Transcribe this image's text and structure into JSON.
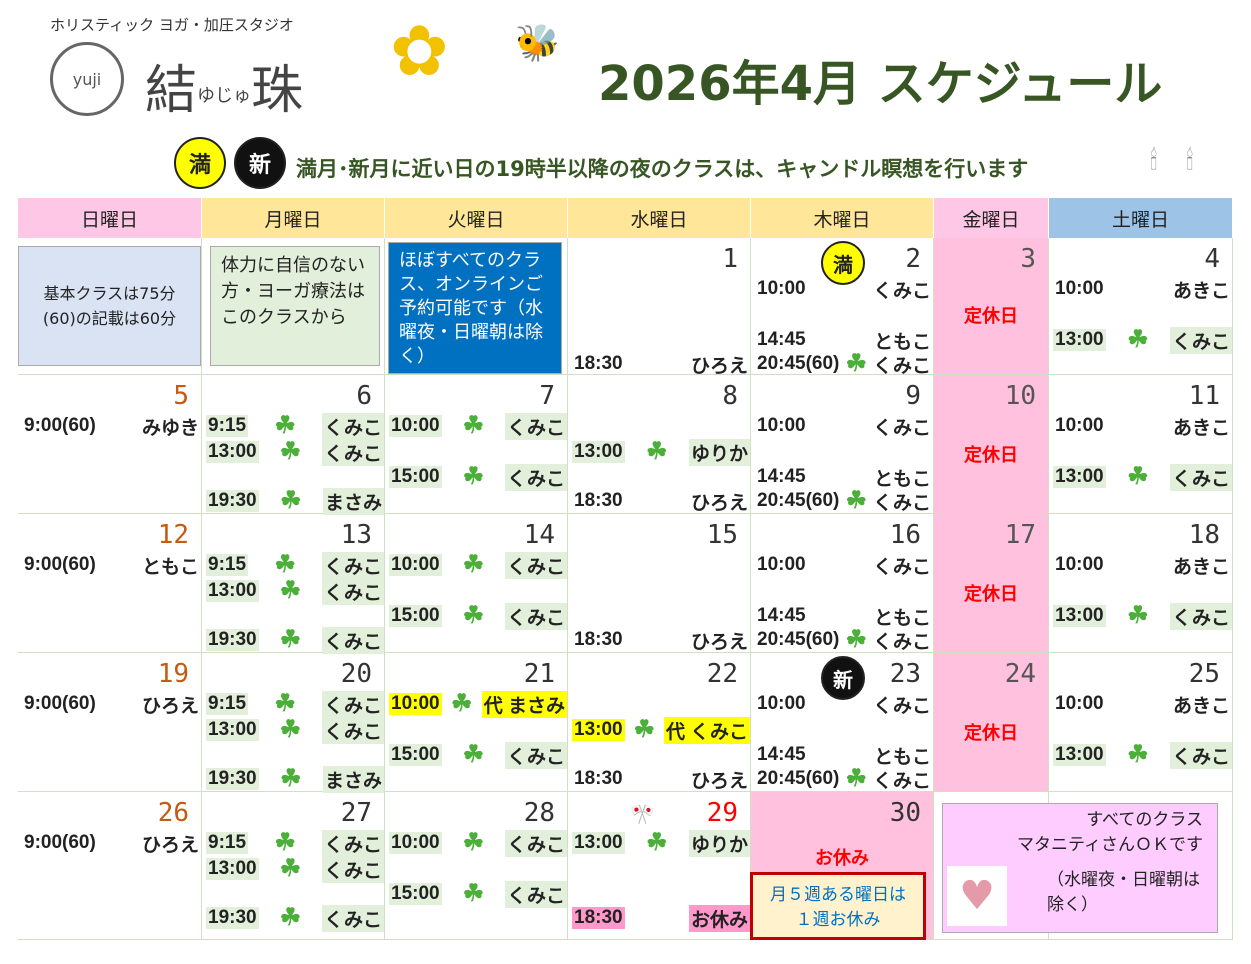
{
  "header": {
    "studio_sub": "ホリスティック ヨガ・加圧スタジオ",
    "logo_mark": "yuji",
    "studio_name": "結",
    "studio_reading": "ゆじゅ",
    "studio_name2": "珠",
    "title": "2026年4月 スケジュール"
  },
  "notice": {
    "full_moon": "満",
    "new_moon": "新",
    "text": "満月･新月に近い日の19時半以降の夜のクラスは、キャンドル瞑想を行います"
  },
  "colors": {
    "title": "#375623",
    "sun": "#ffc7e6",
    "weekday": "#ffe699",
    "fri": "#ffc7e6",
    "sat": "#9dc3e6",
    "closed": "#ffc1dd"
  },
  "weekdays": [
    "日曜日",
    "月曜日",
    "火曜日",
    "水曜日",
    "木曜日",
    "金曜日",
    "土曜日"
  ],
  "notes": {
    "basic": "基本クラスは75分 (60)の記載は60分",
    "beginner": "体力に自信のない方・ヨーガ療法はこのクラスから",
    "online": "ほぼすべてのクラス、オンラインご予約可能です（水曜夜・日曜朝は除く）",
    "fifth_week": "月５週ある曜日は１週お休み",
    "maternity1": "すべてのクラス",
    "maternity2": "マタニティさんＯＫです",
    "maternity3": "（水曜夜・日曜朝は除く）"
  },
  "weeks": [
    [
      null,
      null,
      null,
      {
        "day": "1",
        "e": [
          {
            "s": 3,
            "time": "18:30",
            "teacher": "ひろえ"
          }
        ]
      },
      {
        "day": "2",
        "moon": "満",
        "e": [
          {
            "s": 0,
            "time": "10:00",
            "teacher": "くみこ"
          },
          {
            "s": 2,
            "time": "14:45",
            "teacher": "ともこ"
          },
          {
            "s": 3,
            "time": "20:45(60)",
            "teacher": "くみこ",
            "clover": true,
            "candle": true
          }
        ]
      },
      {
        "day": "3",
        "closed": "定休日"
      },
      {
        "day": "4",
        "e": [
          {
            "s": 0,
            "time": "10:00",
            "teacher": "あきこ"
          },
          {
            "s": 2,
            "time": "13:00",
            "teacher": "くみこ",
            "clover": true,
            "bg": "g"
          }
        ]
      }
    ],
    [
      {
        "day": "5",
        "e": [
          {
            "s": 0,
            "time": "9:00(60)",
            "teacher": "みゆき"
          }
        ]
      },
      {
        "day": "6",
        "e": [
          {
            "s": 0,
            "time": "9:15",
            "teacher": "くみこ",
            "clover": true,
            "bg": "g"
          },
          {
            "s": 1,
            "time": "13:00",
            "teacher": "くみこ",
            "clover": true,
            "bg": "g"
          },
          {
            "s": 3,
            "time": "19:30",
            "teacher": "まさみ",
            "clover": true,
            "bg": "g"
          }
        ]
      },
      {
        "day": "7",
        "e": [
          {
            "s": 0,
            "time": "10:00",
            "teacher": "くみこ",
            "clover": true,
            "bg": "g"
          },
          {
            "s": 2,
            "time": "15:00",
            "teacher": "くみこ",
            "clover": true,
            "bg": "g"
          }
        ]
      },
      {
        "day": "8",
        "e": [
          {
            "s": 1,
            "time": "13:00",
            "teacher": "ゆりか",
            "clover": true,
            "bg": "g"
          },
          {
            "s": 3,
            "time": "18:30",
            "teacher": "ひろえ"
          }
        ]
      },
      {
        "day": "9",
        "e": [
          {
            "s": 0,
            "time": "10:00",
            "teacher": "くみこ"
          },
          {
            "s": 2,
            "time": "14:45",
            "teacher": "ともこ"
          },
          {
            "s": 3,
            "time": "20:45(60)",
            "teacher": "くみこ",
            "clover": true
          }
        ]
      },
      {
        "day": "10",
        "closed": "定休日"
      },
      {
        "day": "11",
        "e": [
          {
            "s": 0,
            "time": "10:00",
            "teacher": "あきこ"
          },
          {
            "s": 2,
            "time": "13:00",
            "teacher": "くみこ",
            "clover": true,
            "bg": "g"
          }
        ]
      }
    ],
    [
      {
        "day": "12",
        "e": [
          {
            "s": 0,
            "time": "9:00(60)",
            "teacher": "ともこ"
          }
        ]
      },
      {
        "day": "13",
        "e": [
          {
            "s": 0,
            "time": "9:15",
            "teacher": "くみこ",
            "clover": true,
            "bg": "g"
          },
          {
            "s": 1,
            "time": "13:00",
            "teacher": "くみこ",
            "clover": true,
            "bg": "g"
          },
          {
            "s": 3,
            "time": "19:30",
            "teacher": "くみこ",
            "clover": true,
            "bg": "g"
          }
        ]
      },
      {
        "day": "14",
        "e": [
          {
            "s": 0,
            "time": "10:00",
            "teacher": "くみこ",
            "clover": true,
            "bg": "g"
          },
          {
            "s": 2,
            "time": "15:00",
            "teacher": "くみこ",
            "clover": true,
            "bg": "g"
          }
        ]
      },
      {
        "day": "15",
        "e": [
          {
            "s": 3,
            "time": "18:30",
            "teacher": "ひろえ"
          }
        ]
      },
      {
        "day": "16",
        "e": [
          {
            "s": 0,
            "time": "10:00",
            "teacher": "くみこ"
          },
          {
            "s": 2,
            "time": "14:45",
            "teacher": "ともこ"
          },
          {
            "s": 3,
            "time": "20:45(60)",
            "teacher": "くみこ",
            "clover": true
          }
        ]
      },
      {
        "day": "17",
        "closed": "定休日"
      },
      {
        "day": "18",
        "e": [
          {
            "s": 0,
            "time": "10:00",
            "teacher": "あきこ"
          },
          {
            "s": 2,
            "time": "13:00",
            "teacher": "くみこ",
            "clover": true,
            "bg": "g"
          }
        ]
      }
    ],
    [
      {
        "day": "19",
        "e": [
          {
            "s": 0,
            "time": "9:00(60)",
            "teacher": "ひろえ"
          }
        ]
      },
      {
        "day": "20",
        "e": [
          {
            "s": 0,
            "time": "9:15",
            "teacher": "くみこ",
            "clover": true,
            "bg": "g"
          },
          {
            "s": 1,
            "time": "13:00",
            "teacher": "くみこ",
            "clover": true,
            "bg": "g"
          },
          {
            "s": 3,
            "time": "19:30",
            "teacher": "まさみ",
            "clover": true,
            "bg": "g"
          }
        ]
      },
      {
        "day": "21",
        "e": [
          {
            "s": 0,
            "time": "10:00",
            "teacher": "代 まさみ",
            "clover": true,
            "bg": "y"
          },
          {
            "s": 2,
            "time": "15:00",
            "teacher": "くみこ",
            "clover": true,
            "bg": "g"
          }
        ]
      },
      {
        "day": "22",
        "e": [
          {
            "s": 1,
            "time": "13:00",
            "teacher": "代 くみこ",
            "clover": true,
            "bg": "y"
          },
          {
            "s": 3,
            "time": "18:30",
            "teacher": "ひろえ"
          }
        ]
      },
      {
        "day": "23",
        "moon": "新",
        "e": [
          {
            "s": 0,
            "time": "10:00",
            "teacher": "くみこ"
          },
          {
            "s": 2,
            "time": "14:45",
            "teacher": "ともこ"
          },
          {
            "s": 3,
            "time": "20:45(60)",
            "teacher": "くみこ",
            "clover": true,
            "candle": true
          }
        ]
      },
      {
        "day": "24",
        "closed": "定休日"
      },
      {
        "day": "25",
        "e": [
          {
            "s": 0,
            "time": "10:00",
            "teacher": "あきこ"
          },
          {
            "s": 2,
            "time": "13:00",
            "teacher": "くみこ",
            "clover": true,
            "bg": "g"
          }
        ]
      }
    ],
    [
      {
        "day": "26",
        "e": [
          {
            "s": 0,
            "time": "9:00(60)",
            "teacher": "ひろえ"
          }
        ]
      },
      {
        "day": "27",
        "e": [
          {
            "s": 0,
            "time": "9:15",
            "teacher": "くみこ",
            "clover": true,
            "bg": "g"
          },
          {
            "s": 1,
            "time": "13:00",
            "teacher": "くみこ",
            "clover": true,
            "bg": "g"
          },
          {
            "s": 3,
            "time": "19:30",
            "teacher": "くみこ",
            "clover": true,
            "bg": "g"
          }
        ]
      },
      {
        "day": "28",
        "e": [
          {
            "s": 0,
            "time": "10:00",
            "teacher": "くみこ",
            "clover": true,
            "bg": "g"
          },
          {
            "s": 2,
            "time": "15:00",
            "teacher": "くみこ",
            "clover": true,
            "bg": "g"
          }
        ]
      },
      {
        "day": "29",
        "holiday": true,
        "e": [
          {
            "s": 0,
            "time": "13:00",
            "teacher": "ゆりか",
            "clover": true,
            "bg": "g"
          },
          {
            "s": 3,
            "time": "18:30",
            "teacher": "お休み",
            "bg": "p"
          }
        ]
      },
      {
        "day": "30",
        "off": "お休み"
      },
      null,
      null
    ]
  ]
}
